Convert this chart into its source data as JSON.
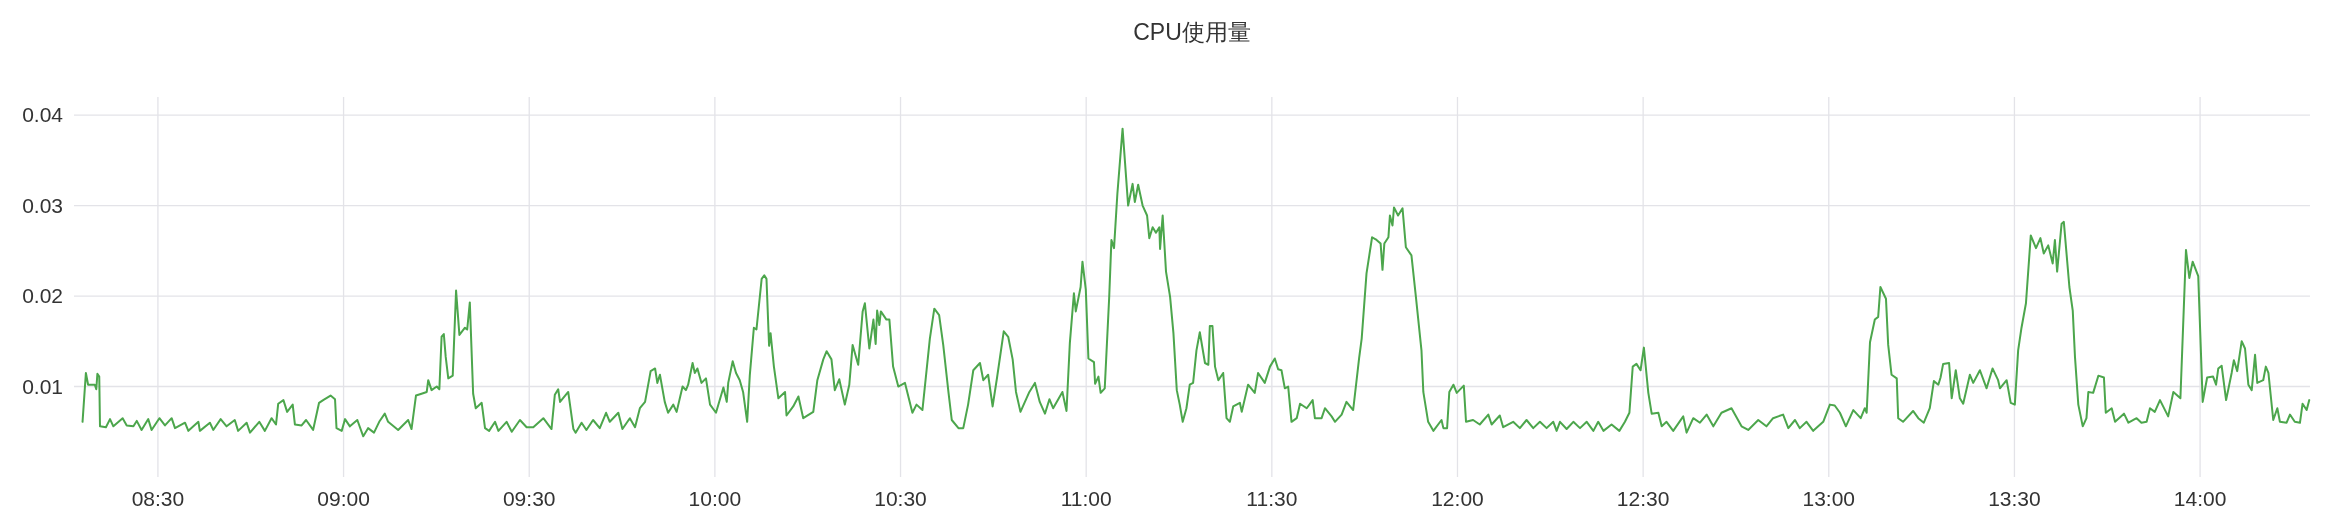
{
  "chart_data": {
    "type": "line",
    "title": "CPU使用量",
    "color": "#4ca64c",
    "grid": true,
    "xlim": [
      8.274,
      14.296
    ],
    "ylim": [
      0,
      0.042
    ],
    "xticks": [
      {
        "value": 8.5,
        "label": "08:30"
      },
      {
        "value": 9,
        "label": "09:00"
      },
      {
        "value": 9.5,
        "label": "09:30"
      },
      {
        "value": 10,
        "label": "10:00"
      },
      {
        "value": 10.5,
        "label": "10:30"
      },
      {
        "value": 11,
        "label": "11:00"
      },
      {
        "value": 11.5,
        "label": "11:30"
      },
      {
        "value": 12,
        "label": "12:00"
      },
      {
        "value": 12.5,
        "label": "12:30"
      },
      {
        "value": 13,
        "label": "13:00"
      },
      {
        "value": 13.5,
        "label": "13:30"
      },
      {
        "value": 14,
        "label": "14:00"
      }
    ],
    "yticks": [
      0.01,
      0.02,
      0.03,
      0.04
    ],
    "x": [
      8.297,
      8.306,
      8.312,
      8.33,
      8.334,
      8.337,
      8.342,
      8.344,
      8.36,
      8.371,
      8.38,
      8.405,
      8.416,
      8.434,
      8.443,
      8.456,
      8.474,
      8.483,
      8.504,
      8.519,
      8.537,
      8.546,
      8.573,
      8.582,
      8.609,
      8.613,
      8.64,
      8.649,
      8.669,
      8.685,
      8.707,
      8.716,
      8.739,
      8.748,
      8.773,
      8.788,
      8.806,
      8.818,
      8.824,
      8.838,
      8.848,
      8.863,
      8.869,
      8.887,
      8.899,
      8.918,
      8.934,
      8.945,
      8.965,
      8.977,
      8.981,
      8.995,
      9.004,
      9.017,
      9.037,
      9.053,
      9.066,
      9.082,
      9.096,
      9.111,
      9.12,
      9.147,
      9.174,
      9.183,
      9.195,
      9.21,
      9.224,
      9.228,
      9.237,
      9.251,
      9.258,
      9.264,
      9.27,
      9.275,
      9.282,
      9.294,
      9.303,
      9.312,
      9.327,
      9.333,
      9.34,
      9.349,
      9.356,
      9.372,
      9.381,
      9.392,
      9.408,
      9.417,
      9.439,
      9.453,
      9.475,
      9.493,
      9.511,
      9.538,
      9.56,
      9.569,
      9.578,
      9.583,
      9.605,
      9.619,
      9.625,
      9.641,
      9.654,
      9.672,
      9.69,
      9.707,
      9.717,
      9.74,
      9.751,
      9.771,
      9.785,
      9.798,
      9.812,
      9.827,
      9.839,
      9.845,
      9.852,
      9.865,
      9.874,
      9.888,
      9.897,
      9.913,
      9.922,
      9.928,
      9.94,
      9.946,
      9.953,
      9.964,
      9.976,
      9.987,
      10.003,
      10.023,
      10.032,
      10.036,
      10.048,
      10.057,
      10.067,
      10.076,
      10.087,
      10.094,
      10.105,
      10.112,
      10.126,
      10.133,
      10.139,
      10.146,
      10.15,
      10.159,
      10.171,
      10.189,
      10.193,
      10.211,
      10.225,
      10.238,
      10.265,
      10.276,
      10.292,
      10.301,
      10.314,
      10.323,
      10.335,
      10.35,
      10.362,
      10.371,
      10.386,
      10.398,
      10.404,
      10.416,
      10.427,
      10.433,
      10.437,
      10.443,
      10.447,
      10.462,
      10.47,
      10.48,
      10.494,
      10.512,
      10.532,
      10.543,
      10.559,
      10.579,
      10.591,
      10.604,
      10.615,
      10.629,
      10.638,
      10.656,
      10.669,
      10.682,
      10.696,
      10.714,
      10.723,
      10.736,
      10.748,
      10.76,
      10.778,
      10.79,
      10.802,
      10.811,
      10.823,
      10.847,
      10.862,
      10.875,
      10.889,
      10.901,
      10.911,
      10.936,
      10.947,
      10.956,
      10.967,
      10.972,
      10.985,
      10.99,
      10.999,
      11.006,
      11.021,
      11.024,
      11.033,
      11.039,
      11.05,
      11.062,
      11.068,
      11.075,
      11.084,
      11.098,
      11.113,
      11.125,
      11.131,
      11.14,
      11.152,
      11.164,
      11.17,
      11.179,
      11.188,
      11.197,
      11.199,
      11.206,
      11.215,
      11.226,
      11.235,
      11.244,
      11.252,
      11.26,
      11.27,
      11.279,
      11.288,
      11.297,
      11.306,
      11.32,
      11.329,
      11.333,
      11.34,
      11.347,
      11.356,
      11.369,
      11.378,
      11.387,
      11.396,
      11.414,
      11.419,
      11.436,
      11.454,
      11.463,
      11.481,
      11.495,
      11.508,
      11.517,
      11.526,
      11.535,
      11.544,
      11.553,
      11.567,
      11.576,
      11.594,
      11.61,
      11.616,
      11.634,
      11.643,
      11.661,
      11.67,
      11.688,
      11.701,
      11.719,
      11.735,
      11.742,
      11.755,
      11.77,
      11.782,
      11.793,
      11.798,
      11.803,
      11.814,
      11.818,
      11.825,
      11.829,
      11.84,
      11.852,
      11.861,
      11.876,
      11.888,
      11.903,
      11.908,
      11.921,
      11.935,
      11.957,
      11.962,
      11.972,
      11.978,
      11.989,
      11.998,
      12.017,
      12.023,
      12.042,
      12.06,
      12.083,
      12.092,
      12.114,
      12.123,
      12.15,
      12.168,
      12.186,
      12.204,
      12.222,
      12.24,
      12.258,
      12.267,
      12.276,
      12.294,
      12.312,
      12.33,
      12.348,
      12.366,
      12.379,
      12.393,
      12.415,
      12.436,
      12.451,
      12.463,
      12.472,
      12.482,
      12.493,
      12.502,
      12.514,
      12.523,
      12.541,
      12.55,
      12.563,
      12.581,
      12.608,
      12.617,
      12.635,
      12.653,
      12.671,
      12.689,
      12.711,
      12.738,
      12.765,
      12.783,
      12.81,
      12.832,
      12.85,
      12.877,
      12.891,
      12.909,
      12.922,
      12.94,
      12.958,
      12.985,
      13.003,
      13.016,
      13.03,
      13.046,
      13.066,
      13.086,
      13.097,
      13.102,
      13.111,
      13.124,
      13.133,
      13.139,
      13.154,
      13.16,
      13.169,
      13.183,
      13.187,
      13.2,
      13.227,
      13.241,
      13.256,
      13.272,
      13.283,
      13.295,
      13.301,
      13.308,
      13.324,
      13.331,
      13.342,
      13.353,
      13.362,
      13.38,
      13.389,
      13.407,
      13.425,
      13.441,
      13.456,
      13.461,
      13.479,
      13.49,
      13.501,
      13.51,
      13.519,
      13.531,
      13.544,
      13.558,
      13.57,
      13.579,
      13.591,
      13.603,
      13.609,
      13.615,
      13.627,
      13.633,
      13.648,
      13.657,
      13.663,
      13.672,
      13.684,
      13.694,
      13.699,
      13.712,
      13.726,
      13.741,
      13.746,
      13.762,
      13.771,
      13.795,
      13.807,
      13.829,
      13.842,
      13.856,
      13.865,
      13.878,
      13.892,
      13.914,
      13.928,
      13.947,
      13.962,
      13.971,
      13.98,
      13.995,
      14.007,
      14.019,
      14.035,
      14.043,
      14.049,
      14.058,
      14.07,
      14.085,
      14.091,
      14.1,
      14.112,
      14.121,
      14.13,
      14.139,
      14.148,
      14.154,
      14.17,
      14.177,
      14.184,
      14.197,
      14.208,
      14.215,
      14.233,
      14.242,
      14.255,
      14.269,
      14.276,
      14.287,
      14.294
    ],
    "values": [
      0.0061,
      0.0115,
      0.0102,
      0.0102,
      0.0097,
      0.0114,
      0.0111,
      0.0056,
      0.0055,
      0.0064,
      0.0056,
      0.0065,
      0.0057,
      0.0056,
      0.0062,
      0.0052,
      0.0064,
      0.0052,
      0.0065,
      0.0057,
      0.0065,
      0.0054,
      0.006,
      0.0051,
      0.0061,
      0.0051,
      0.006,
      0.0052,
      0.0064,
      0.0056,
      0.0063,
      0.0051,
      0.006,
      0.0049,
      0.0061,
      0.0051,
      0.0065,
      0.0058,
      0.0081,
      0.0085,
      0.0072,
      0.008,
      0.0058,
      0.0057,
      0.0063,
      0.0052,
      0.0082,
      0.0085,
      0.009,
      0.0086,
      0.0054,
      0.0051,
      0.0064,
      0.0056,
      0.0063,
      0.0045,
      0.0054,
      0.0049,
      0.0061,
      0.007,
      0.0061,
      0.0052,
      0.0063,
      0.0053,
      0.009,
      0.0092,
      0.0094,
      0.0107,
      0.0096,
      0.01,
      0.0097,
      0.0155,
      0.0158,
      0.0133,
      0.0109,
      0.0112,
      0.0206,
      0.0157,
      0.0165,
      0.0163,
      0.0193,
      0.0092,
      0.0076,
      0.0082,
      0.0054,
      0.0051,
      0.0061,
      0.0051,
      0.0061,
      0.005,
      0.0063,
      0.0055,
      0.0055,
      0.0065,
      0.0053,
      0.0091,
      0.0097,
      0.0083,
      0.0094,
      0.0053,
      0.0049,
      0.006,
      0.0052,
      0.0063,
      0.0054,
      0.0071,
      0.0061,
      0.0071,
      0.0053,
      0.0065,
      0.0055,
      0.0076,
      0.0083,
      0.0117,
      0.012,
      0.0104,
      0.0113,
      0.0083,
      0.0071,
      0.008,
      0.0072,
      0.01,
      0.0096,
      0.0102,
      0.0126,
      0.0115,
      0.012,
      0.0104,
      0.0109,
      0.008,
      0.0071,
      0.0099,
      0.0083,
      0.0104,
      0.0128,
      0.0115,
      0.0107,
      0.0094,
      0.0061,
      0.0112,
      0.0165,
      0.0163,
      0.0219,
      0.0223,
      0.0219,
      0.0145,
      0.0159,
      0.0122,
      0.0087,
      0.0094,
      0.0068,
      0.0078,
      0.0089,
      0.0065,
      0.0072,
      0.0107,
      0.013,
      0.0139,
      0.013,
      0.0096,
      0.0108,
      0.008,
      0.0102,
      0.0146,
      0.0124,
      0.0183,
      0.0192,
      0.0142,
      0.0174,
      0.0147,
      0.0184,
      0.0168,
      0.0183,
      0.0174,
      0.0174,
      0.0122,
      0.01,
      0.0104,
      0.0071,
      0.008,
      0.0074,
      0.0153,
      0.0186,
      0.0179,
      0.0146,
      0.0094,
      0.0063,
      0.0054,
      0.0054,
      0.008,
      0.0118,
      0.0126,
      0.0107,
      0.0113,
      0.0078,
      0.011,
      0.0161,
      0.0155,
      0.013,
      0.0094,
      0.0072,
      0.0094,
      0.0104,
      0.0083,
      0.007,
      0.0086,
      0.0076,
      0.0094,
      0.0073,
      0.0148,
      0.0203,
      0.0183,
      0.021,
      0.0238,
      0.0207,
      0.0131,
      0.0127,
      0.0103,
      0.0111,
      0.0093,
      0.0098,
      0.0199,
      0.0262,
      0.0253,
      0.0313,
      0.0385,
      0.03,
      0.0324,
      0.0304,
      0.0323,
      0.03,
      0.0289,
      0.0264,
      0.0276,
      0.027,
      0.0276,
      0.0252,
      0.0289,
      0.0227,
      0.0199,
      0.0159,
      0.0096,
      0.008,
      0.0061,
      0.0076,
      0.0102,
      0.0104,
      0.014,
      0.016,
      0.0126,
      0.0124,
      0.0167,
      0.0167,
      0.0122,
      0.0107,
      0.0115,
      0.0065,
      0.0061,
      0.0078,
      0.0082,
      0.0072,
      0.0102,
      0.0093,
      0.0115,
      0.0104,
      0.0122,
      0.0131,
      0.0119,
      0.0118,
      0.0098,
      0.01,
      0.0061,
      0.0065,
      0.0081,
      0.0076,
      0.0085,
      0.0065,
      0.0065,
      0.0076,
      0.0067,
      0.0061,
      0.0069,
      0.0083,
      0.0074,
      0.0131,
      0.0153,
      0.0225,
      0.0265,
      0.0262,
      0.0258,
      0.0229,
      0.0258,
      0.0265,
      0.0289,
      0.0278,
      0.0298,
      0.0289,
      0.0297,
      0.0254,
      0.0245,
      0.0199,
      0.014,
      0.0094,
      0.0061,
      0.0051,
      0.0063,
      0.0054,
      0.0054,
      0.0094,
      0.0102,
      0.0093,
      0.0101,
      0.0061,
      0.0063,
      0.0058,
      0.0069,
      0.0058,
      0.0068,
      0.0055,
      0.0061,
      0.0054,
      0.0063,
      0.0054,
      0.0061,
      0.0054,
      0.0061,
      0.0051,
      0.0061,
      0.0053,
      0.0061,
      0.0054,
      0.0061,
      0.0051,
      0.0061,
      0.0051,
      0.0058,
      0.0051,
      0.0061,
      0.0071,
      0.0122,
      0.0125,
      0.0118,
      0.0143,
      0.0093,
      0.007,
      0.0071,
      0.0056,
      0.0061,
      0.0051,
      0.0067,
      0.0049,
      0.0065,
      0.006,
      0.0069,
      0.0056,
      0.0071,
      0.0076,
      0.0056,
      0.0052,
      0.0063,
      0.0056,
      0.0065,
      0.0069,
      0.0054,
      0.0063,
      0.0054,
      0.0061,
      0.0051,
      0.0061,
      0.008,
      0.0079,
      0.0071,
      0.0056,
      0.0074,
      0.0065,
      0.0076,
      0.0071,
      0.0149,
      0.0174,
      0.0177,
      0.021,
      0.0197,
      0.0146,
      0.0113,
      0.0109,
      0.0065,
      0.0061,
      0.0073,
      0.0065,
      0.006,
      0.0076,
      0.0106,
      0.0102,
      0.011,
      0.0125,
      0.0126,
      0.0087,
      0.0118,
      0.0087,
      0.0081,
      0.0113,
      0.0104,
      0.0118,
      0.0098,
      0.012,
      0.0107,
      0.0098,
      0.0107,
      0.0082,
      0.008,
      0.014,
      0.0165,
      0.0192,
      0.0267,
      0.0253,
      0.0264,
      0.0247,
      0.0256,
      0.0236,
      0.0262,
      0.0227,
      0.028,
      0.0282,
      0.021,
      0.0184,
      0.0133,
      0.008,
      0.0056,
      0.0065,
      0.0094,
      0.0093,
      0.0112,
      0.011,
      0.0071,
      0.0076,
      0.0061,
      0.007,
      0.006,
      0.0065,
      0.006,
      0.0061,
      0.0076,
      0.0072,
      0.0085,
      0.0067,
      0.0094,
      0.0087,
      0.0251,
      0.022,
      0.0238,
      0.0222,
      0.0083,
      0.011,
      0.0111,
      0.0102,
      0.012,
      0.0123,
      0.0085,
      0.0115,
      0.0129,
      0.0117,
      0.015,
      0.0142,
      0.0102,
      0.0096,
      0.0135,
      0.0104,
      0.0107,
      0.0122,
      0.0115,
      0.0063,
      0.0076,
      0.0061,
      0.006,
      0.0069,
      0.0061,
      0.006,
      0.0081,
      0.0074,
      0.0085
    ]
  }
}
